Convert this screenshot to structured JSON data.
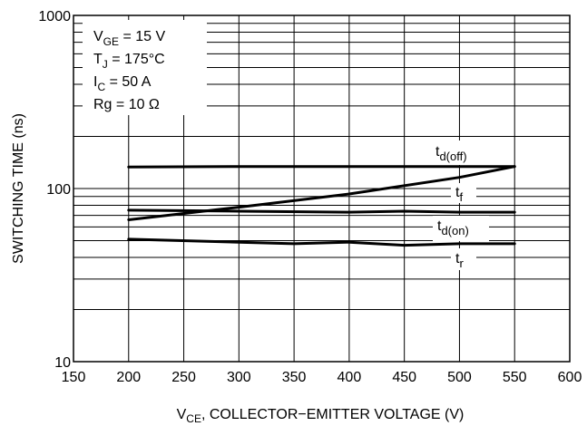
{
  "chart_data": {
    "type": "line",
    "xlabel_main": "V",
    "xlabel_sub": "CE",
    "xlabel_rest": ", COLLECTOR−EMITTER VOLTAGE (V)",
    "ylabel": "SWITCHING TIME (ns)",
    "xlim": [
      150,
      600
    ],
    "ylim": [
      10,
      1000
    ],
    "yscale": "log",
    "grid": true,
    "x_ticks": [
      "150",
      "200",
      "250",
      "300",
      "350",
      "400",
      "450",
      "500",
      "550",
      "600"
    ],
    "y_ticks": [
      "10",
      "100",
      "1000"
    ],
    "conditions": [
      {
        "main": "V",
        "sub": "GE",
        "rest": " = 15 V"
      },
      {
        "main": "T",
        "sub": "J",
        "rest": " = 175°C"
      },
      {
        "main": "I",
        "sub": "C",
        "rest": " = 50 A"
      },
      {
        "main": "Rg = 10 Ω",
        "sub": "",
        "rest": ""
      }
    ],
    "series": [
      {
        "name_main": "t",
        "name_sub": "d(off)",
        "x": [
          200,
          300,
          400,
          500,
          550
        ],
        "y": [
          133,
          134,
          134,
          134,
          134
        ]
      },
      {
        "name_main": "t",
        "name_sub": "f",
        "x": [
          200,
          300,
          400,
          500,
          550
        ],
        "y": [
          66,
          78,
          93,
          116,
          134
        ]
      },
      {
        "name_main": "t",
        "name_sub": "d(on)",
        "x": [
          200,
          300,
          400,
          450,
          500,
          550
        ],
        "y": [
          75,
          74,
          73,
          74,
          73,
          73
        ]
      },
      {
        "name_main": "t",
        "name_sub": "r",
        "x": [
          200,
          300,
          350,
          400,
          450,
          500,
          550
        ],
        "y": [
          51,
          49,
          48,
          49,
          47,
          48,
          48
        ]
      }
    ]
  }
}
